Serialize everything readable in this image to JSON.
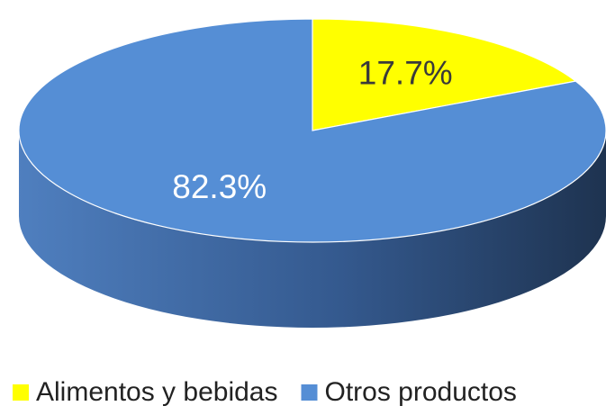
{
  "chart_data": {
    "type": "pie",
    "categories": [
      "Alimentos y bebidas",
      "Otros productos"
    ],
    "values": [
      17.7,
      82.3
    ],
    "value_labels": [
      "17.7%",
      "82.3%"
    ],
    "colors": [
      "#ffff00",
      "#558ed5"
    ],
    "legend": "bottom"
  }
}
